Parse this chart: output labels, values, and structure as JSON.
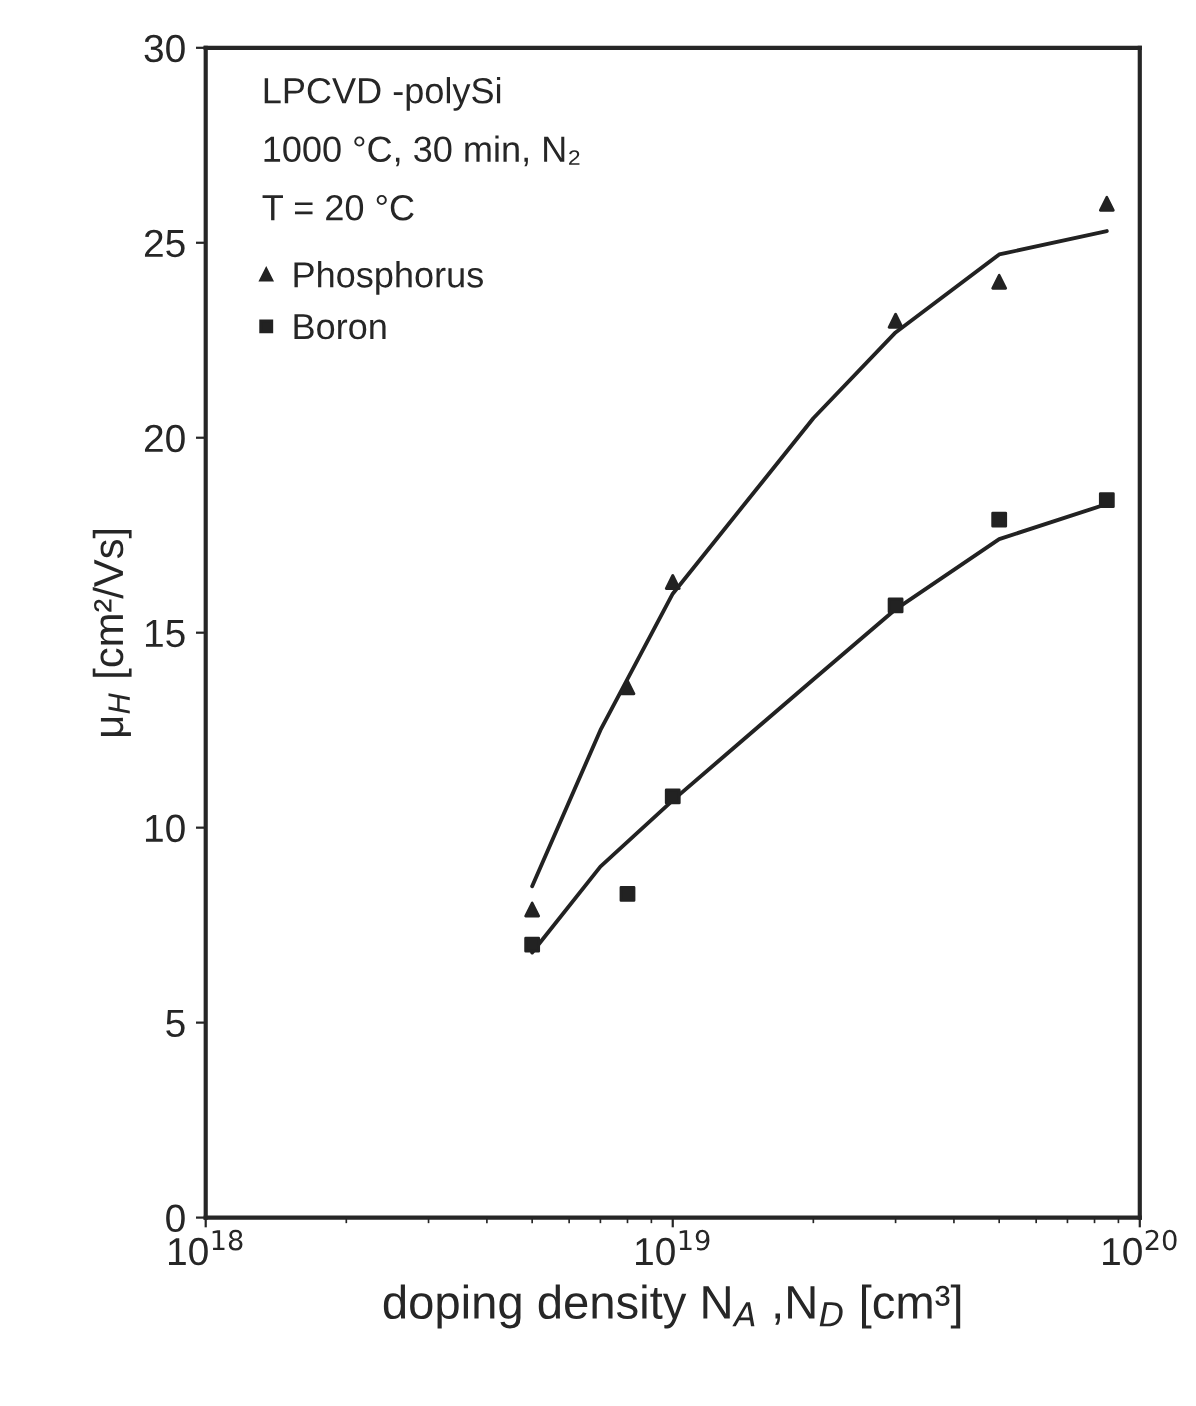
{
  "chart_data": {
    "type": "scatter",
    "xlabel": "doping density N$_{A}$ ,N$_{D}$ [cm³]",
    "ylabel": "μ$_{H}$ [cm²/Vs]",
    "annotations": [
      "LPCVD -polySi",
      "1000 °C, 30 min, N₂",
      "T = 20 °C"
    ],
    "log": "x",
    "xlim": [
      1e+18,
      1e+20
    ],
    "xticks": [
      {
        "value": 1e+18,
        "label": "10$^{18}$"
      },
      {
        "value": 1e+19,
        "label": "10$^{19}$"
      },
      {
        "value": 1e+20,
        "label": "10$^{20}$"
      }
    ],
    "ylim": [
      0,
      30
    ],
    "yticks": [
      0,
      5,
      10,
      15,
      20,
      25,
      30
    ],
    "legend": "top left",
    "grid": false,
    "series": [
      {
        "name": "Phosphorus",
        "color": "#222222",
        "marker": "triangle",
        "x": [
          5e+18,
          8e+18,
          1e+19,
          3e+19,
          5e+19,
          8.5e+19
        ],
        "values": [
          7.9,
          13.6,
          16.3,
          23,
          24,
          26
        ]
      },
      {
        "name": "Boron",
        "color": "#222222",
        "marker": "square",
        "x": [
          5e+18,
          8e+18,
          1e+19,
          3e+19,
          5e+19,
          8.5e+19
        ],
        "values": [
          7.0,
          8.3,
          10.8,
          15.7,
          17.9,
          18.4
        ]
      },
      {
        "type": "line",
        "color": "#222222",
        "line_style": "solid",
        "x": [
          5e+18,
          7e+18,
          1e+19,
          2e+19,
          3e+19,
          5e+19,
          8.5e+19
        ],
        "values": [
          8.5,
          12.5,
          16.0,
          20.5,
          22.7,
          24.7,
          25.3
        ]
      },
      {
        "type": "line",
        "color": "#222222",
        "line_style": "solid",
        "x": [
          5e+18,
          7e+18,
          1e+19,
          2e+19,
          3e+19,
          5e+19,
          8.5e+19
        ],
        "values": [
          6.8,
          9.0,
          10.7,
          13.8,
          15.6,
          17.4,
          18.3
        ]
      }
    ]
  }
}
